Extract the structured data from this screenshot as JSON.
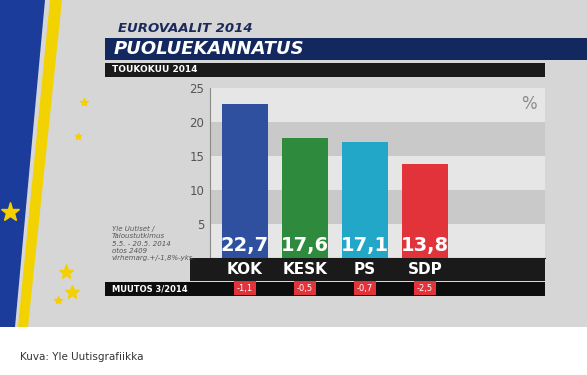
{
  "chart_data": {
    "type": "bar",
    "supertitle": "EUROVAALIT 2014",
    "title": "PUOLUEKANNATUS",
    "subtitle": "TOUKOKUU 2014",
    "unit": "%",
    "categories": [
      "KOK",
      "KESK",
      "PS",
      "SDP"
    ],
    "values": [
      22.7,
      17.6,
      17.1,
      13.8
    ],
    "value_labels": [
      "22,7",
      "17,6",
      "17,1",
      "13,8"
    ],
    "colors": [
      "#2f4f9f",
      "#2e8a3c",
      "#22a7c8",
      "#e2333a"
    ],
    "data_labels": true,
    "ylim": [
      0,
      25
    ],
    "yticks": [
      5,
      10,
      15,
      20,
      25
    ],
    "grid": true,
    "change_title": "MUUTOS 3/2014",
    "changes": [
      -1.1,
      -0.5,
      -0.7,
      -2.5
    ],
    "change_labels": [
      "-1,1",
      "-0,5",
      "-0,7",
      "-2,5"
    ],
    "source": "Yle Uutiset /\nTaloustutkimus\n5.5. - 20.5. 2014\notos 2409\nvirhemarg.+/-1,8%-yks.",
    "caption": "Kuva: Yle Uutisgrafiikka"
  }
}
